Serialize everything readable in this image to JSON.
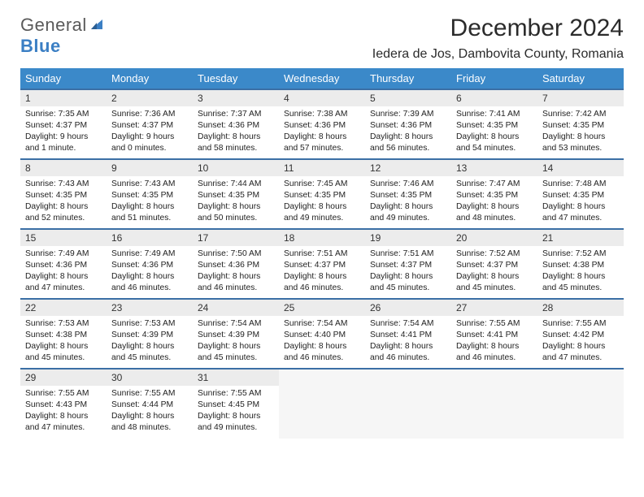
{
  "brand": {
    "part1": "General",
    "part2": "Blue"
  },
  "title": "December 2024",
  "location": "Iedera de Jos, Dambovita County, Romania",
  "colors": {
    "header_bg": "#3b89c9",
    "header_text": "#ffffff",
    "row_border": "#3b6fa5",
    "daynum_bg": "#ececec",
    "brand_gray": "#5a5a5a",
    "brand_blue": "#3b7fc4"
  },
  "weekdays": [
    "Sunday",
    "Monday",
    "Tuesday",
    "Wednesday",
    "Thursday",
    "Friday",
    "Saturday"
  ],
  "weeks": [
    [
      {
        "n": "1",
        "sr": "7:35 AM",
        "ss": "4:37 PM",
        "dl": "9 hours and 1 minute."
      },
      {
        "n": "2",
        "sr": "7:36 AM",
        "ss": "4:37 PM",
        "dl": "9 hours and 0 minutes."
      },
      {
        "n": "3",
        "sr": "7:37 AM",
        "ss": "4:36 PM",
        "dl": "8 hours and 58 minutes."
      },
      {
        "n": "4",
        "sr": "7:38 AM",
        "ss": "4:36 PM",
        "dl": "8 hours and 57 minutes."
      },
      {
        "n": "5",
        "sr": "7:39 AM",
        "ss": "4:36 PM",
        "dl": "8 hours and 56 minutes."
      },
      {
        "n": "6",
        "sr": "7:41 AM",
        "ss": "4:35 PM",
        "dl": "8 hours and 54 minutes."
      },
      {
        "n": "7",
        "sr": "7:42 AM",
        "ss": "4:35 PM",
        "dl": "8 hours and 53 minutes."
      }
    ],
    [
      {
        "n": "8",
        "sr": "7:43 AM",
        "ss": "4:35 PM",
        "dl": "8 hours and 52 minutes."
      },
      {
        "n": "9",
        "sr": "7:43 AM",
        "ss": "4:35 PM",
        "dl": "8 hours and 51 minutes."
      },
      {
        "n": "10",
        "sr": "7:44 AM",
        "ss": "4:35 PM",
        "dl": "8 hours and 50 minutes."
      },
      {
        "n": "11",
        "sr": "7:45 AM",
        "ss": "4:35 PM",
        "dl": "8 hours and 49 minutes."
      },
      {
        "n": "12",
        "sr": "7:46 AM",
        "ss": "4:35 PM",
        "dl": "8 hours and 49 minutes."
      },
      {
        "n": "13",
        "sr": "7:47 AM",
        "ss": "4:35 PM",
        "dl": "8 hours and 48 minutes."
      },
      {
        "n": "14",
        "sr": "7:48 AM",
        "ss": "4:35 PM",
        "dl": "8 hours and 47 minutes."
      }
    ],
    [
      {
        "n": "15",
        "sr": "7:49 AM",
        "ss": "4:36 PM",
        "dl": "8 hours and 47 minutes."
      },
      {
        "n": "16",
        "sr": "7:49 AM",
        "ss": "4:36 PM",
        "dl": "8 hours and 46 minutes."
      },
      {
        "n": "17",
        "sr": "7:50 AM",
        "ss": "4:36 PM",
        "dl": "8 hours and 46 minutes."
      },
      {
        "n": "18",
        "sr": "7:51 AM",
        "ss": "4:37 PM",
        "dl": "8 hours and 46 minutes."
      },
      {
        "n": "19",
        "sr": "7:51 AM",
        "ss": "4:37 PM",
        "dl": "8 hours and 45 minutes."
      },
      {
        "n": "20",
        "sr": "7:52 AM",
        "ss": "4:37 PM",
        "dl": "8 hours and 45 minutes."
      },
      {
        "n": "21",
        "sr": "7:52 AM",
        "ss": "4:38 PM",
        "dl": "8 hours and 45 minutes."
      }
    ],
    [
      {
        "n": "22",
        "sr": "7:53 AM",
        "ss": "4:38 PM",
        "dl": "8 hours and 45 minutes."
      },
      {
        "n": "23",
        "sr": "7:53 AM",
        "ss": "4:39 PM",
        "dl": "8 hours and 45 minutes."
      },
      {
        "n": "24",
        "sr": "7:54 AM",
        "ss": "4:39 PM",
        "dl": "8 hours and 45 minutes."
      },
      {
        "n": "25",
        "sr": "7:54 AM",
        "ss": "4:40 PM",
        "dl": "8 hours and 46 minutes."
      },
      {
        "n": "26",
        "sr": "7:54 AM",
        "ss": "4:41 PM",
        "dl": "8 hours and 46 minutes."
      },
      {
        "n": "27",
        "sr": "7:55 AM",
        "ss": "4:41 PM",
        "dl": "8 hours and 46 minutes."
      },
      {
        "n": "28",
        "sr": "7:55 AM",
        "ss": "4:42 PM",
        "dl": "8 hours and 47 minutes."
      }
    ],
    [
      {
        "n": "29",
        "sr": "7:55 AM",
        "ss": "4:43 PM",
        "dl": "8 hours and 47 minutes."
      },
      {
        "n": "30",
        "sr": "7:55 AM",
        "ss": "4:44 PM",
        "dl": "8 hours and 48 minutes."
      },
      {
        "n": "31",
        "sr": "7:55 AM",
        "ss": "4:45 PM",
        "dl": "8 hours and 49 minutes."
      },
      null,
      null,
      null,
      null
    ]
  ],
  "labels": {
    "sunrise": "Sunrise:",
    "sunset": "Sunset:",
    "daylight": "Daylight:"
  }
}
